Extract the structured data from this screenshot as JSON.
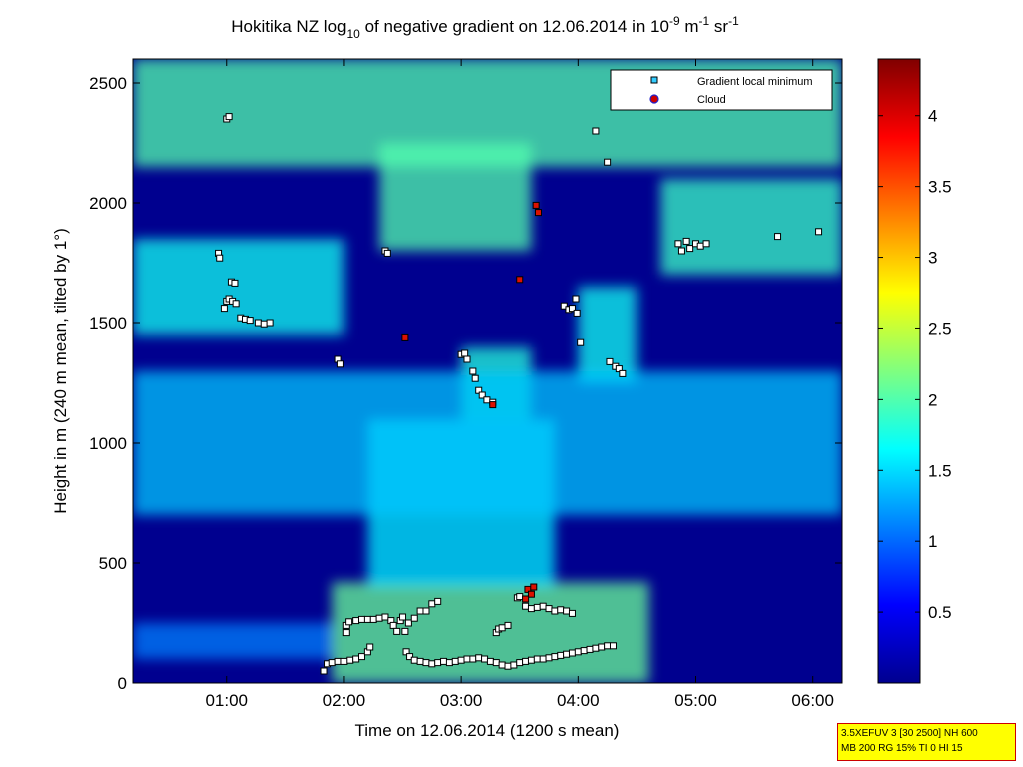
{
  "chart_data": {
    "type": "heatmap",
    "title": {
      "main": "Hokitika NZ log",
      "sub": "10",
      "mid": " of negative gradient on 12.06.2014 in 10",
      "sup1": "-9",
      "u1": " m",
      "sup2": "-1",
      "u2": " sr",
      "sup3": "-1"
    },
    "xlabel": "Time on 12.06.2014 (1200 s mean)",
    "ylabel": "Height in m (240 m mean, tilted by 1°)",
    "xlim": [
      0.2,
      6.25
    ],
    "ylim": [
      0,
      2600
    ],
    "x_ticks": [
      {
        "value": 1,
        "label": "01:00"
      },
      {
        "value": 2,
        "label": "02:00"
      },
      {
        "value": 3,
        "label": "03:00"
      },
      {
        "value": 4,
        "label": "04:00"
      },
      {
        "value": 5,
        "label": "05:00"
      },
      {
        "value": 6,
        "label": "06:00"
      }
    ],
    "y_ticks": [
      {
        "value": 0,
        "label": "0"
      },
      {
        "value": 500,
        "label": "500"
      },
      {
        "value": 1000,
        "label": "1000"
      },
      {
        "value": 1500,
        "label": "1500"
      },
      {
        "value": 2000,
        "label": "2000"
      },
      {
        "value": 2500,
        "label": "2500"
      }
    ],
    "colorbar": {
      "colormap": "jet",
      "range": [
        0,
        4.4
      ],
      "ticks": [
        {
          "value": 0.5,
          "label": "0.5"
        },
        {
          "value": 1,
          "label": "1"
        },
        {
          "value": 1.5,
          "label": "1.5"
        },
        {
          "value": 2,
          "label": "2"
        },
        {
          "value": 2.5,
          "label": "2.5"
        },
        {
          "value": 3,
          "label": "3"
        },
        {
          "value": 3.5,
          "label": "3.5"
        },
        {
          "value": 4,
          "label": "4"
        }
      ]
    },
    "legend": {
      "placement": "top-right",
      "entries": [
        {
          "label": "Gradient local minimum",
          "marker": "square",
          "color": "#33ccff"
        },
        {
          "label": "Cloud",
          "marker": "circle",
          "color": "#cc0000"
        }
      ]
    },
    "heat_features": [
      {
        "t0": 1.9,
        "t1": 4.6,
        "z0": 0,
        "z1": 420,
        "level": 2.1
      },
      {
        "t0": 2.2,
        "t1": 3.8,
        "z0": 400,
        "z1": 1100,
        "level": 1.6
      },
      {
        "t0": 0.2,
        "t1": 6.25,
        "z0": 2150,
        "z1": 2600,
        "level": 2.0
      },
      {
        "t0": 0.2,
        "t1": 2.0,
        "z0": 1450,
        "z1": 1850,
        "level": 1.7
      },
      {
        "t0": 2.3,
        "t1": 3.6,
        "z0": 1800,
        "z1": 2250,
        "level": 2.0
      },
      {
        "t0": 3.0,
        "t1": 3.6,
        "z0": 1100,
        "z1": 1400,
        "level": 1.8
      },
      {
        "t0": 4.7,
        "t1": 6.25,
        "z0": 1700,
        "z1": 2100,
        "level": 1.9
      },
      {
        "t0": 4.0,
        "t1": 4.5,
        "z0": 1250,
        "z1": 1650,
        "level": 1.7
      },
      {
        "t0": 0.2,
        "t1": 6.25,
        "z0": 700,
        "z1": 1300,
        "level": 1.4
      },
      {
        "t0": 0.2,
        "t1": 1.9,
        "z0": 100,
        "z1": 250,
        "level": 1.1
      }
    ],
    "gradient_minima": [
      [
        0.93,
        1790
      ],
      [
        0.94,
        1770
      ],
      [
        0.98,
        1560
      ],
      [
        1.0,
        1590
      ],
      [
        1.02,
        1600
      ],
      [
        1.05,
        1590
      ],
      [
        1.08,
        1580
      ],
      [
        1.0,
        2350
      ],
      [
        1.02,
        2360
      ],
      [
        1.12,
        1520
      ],
      [
        1.16,
        1515
      ],
      [
        1.2,
        1510
      ],
      [
        1.27,
        1500
      ],
      [
        1.32,
        1495
      ],
      [
        1.37,
        1500
      ],
      [
        1.95,
        1350
      ],
      [
        1.97,
        1330
      ],
      [
        2.35,
        1800
      ],
      [
        2.37,
        1790
      ],
      [
        1.04,
        1670
      ],
      [
        1.07,
        1665
      ],
      [
        3.0,
        1370
      ],
      [
        3.03,
        1375
      ],
      [
        3.05,
        1350
      ],
      [
        3.1,
        1300
      ],
      [
        3.12,
        1270
      ],
      [
        3.15,
        1220
      ],
      [
        3.18,
        1200
      ],
      [
        3.22,
        1180
      ],
      [
        3.27,
        1170
      ],
      [
        3.88,
        1570
      ],
      [
        3.92,
        1555
      ],
      [
        3.95,
        1560
      ],
      [
        3.98,
        1600
      ],
      [
        3.99,
        1540
      ],
      [
        4.02,
        1420
      ],
      [
        4.25,
        2170
      ],
      [
        4.15,
        2300
      ],
      [
        4.27,
        1340
      ],
      [
        4.32,
        1320
      ],
      [
        4.35,
        1310
      ],
      [
        4.38,
        1290
      ],
      [
        4.85,
        1830
      ],
      [
        4.88,
        1800
      ],
      [
        4.92,
        1840
      ],
      [
        4.95,
        1810
      ],
      [
        5.0,
        1830
      ],
      [
        5.04,
        1820
      ],
      [
        5.09,
        1830
      ],
      [
        5.7,
        1860
      ],
      [
        6.05,
        1880
      ],
      [
        1.83,
        50
      ],
      [
        1.86,
        80
      ],
      [
        1.9,
        85
      ],
      [
        1.95,
        90
      ],
      [
        2.0,
        90
      ],
      [
        2.05,
        95
      ],
      [
        2.1,
        100
      ],
      [
        2.15,
        110
      ],
      [
        2.2,
        130
      ],
      [
        2.22,
        150
      ],
      [
        2.53,
        130
      ],
      [
        2.56,
        110
      ],
      [
        2.6,
        95
      ],
      [
        2.65,
        90
      ],
      [
        2.7,
        85
      ],
      [
        2.75,
        80
      ],
      [
        2.8,
        85
      ],
      [
        2.85,
        90
      ],
      [
        2.9,
        85
      ],
      [
        2.95,
        90
      ],
      [
        3.0,
        95
      ],
      [
        3.05,
        100
      ],
      [
        3.1,
        100
      ],
      [
        3.15,
        105
      ],
      [
        3.2,
        100
      ],
      [
        3.25,
        90
      ],
      [
        3.3,
        85
      ],
      [
        3.35,
        75
      ],
      [
        3.4,
        70
      ],
      [
        3.45,
        75
      ],
      [
        3.5,
        85
      ],
      [
        3.55,
        90
      ],
      [
        3.6,
        95
      ],
      [
        3.65,
        100
      ],
      [
        3.7,
        100
      ],
      [
        3.75,
        105
      ],
      [
        3.8,
        110
      ],
      [
        3.85,
        115
      ],
      [
        3.9,
        120
      ],
      [
        3.95,
        125
      ],
      [
        4.0,
        130
      ],
      [
        4.05,
        135
      ],
      [
        4.1,
        140
      ],
      [
        4.15,
        145
      ],
      [
        4.2,
        150
      ],
      [
        4.25,
        155
      ],
      [
        4.3,
        155
      ],
      [
        2.02,
        210
      ],
      [
        2.02,
        240
      ],
      [
        2.04,
        255
      ],
      [
        2.1,
        260
      ],
      [
        2.15,
        265
      ],
      [
        2.2,
        265
      ],
      [
        2.25,
        265
      ],
      [
        2.3,
        270
      ],
      [
        2.35,
        275
      ],
      [
        2.4,
        260
      ],
      [
        2.42,
        240
      ],
      [
        2.45,
        215
      ],
      [
        2.48,
        260
      ],
      [
        2.5,
        275
      ],
      [
        2.52,
        215
      ],
      [
        2.55,
        250
      ],
      [
        2.6,
        270
      ],
      [
        2.65,
        300
      ],
      [
        2.7,
        300
      ],
      [
        2.75,
        330
      ],
      [
        2.8,
        340
      ],
      [
        3.3,
        210
      ],
      [
        3.32,
        225
      ],
      [
        3.35,
        230
      ],
      [
        3.4,
        240
      ],
      [
        3.48,
        355
      ],
      [
        3.5,
        360
      ],
      [
        3.55,
        320
      ],
      [
        3.6,
        310
      ],
      [
        3.65,
        315
      ],
      [
        3.7,
        320
      ],
      [
        3.75,
        310
      ],
      [
        3.8,
        300
      ],
      [
        3.85,
        305
      ],
      [
        3.9,
        300
      ],
      [
        3.95,
        290
      ]
    ],
    "cloud_points": [
      [
        3.64,
        1990
      ],
      [
        3.66,
        1960
      ],
      [
        3.5,
        1680
      ],
      [
        2.52,
        1440
      ],
      [
        3.27,
        1160
      ],
      [
        3.57,
        390
      ],
      [
        3.62,
        400
      ],
      [
        3.6,
        370
      ],
      [
        3.55,
        350
      ]
    ]
  },
  "infobox": {
    "line1": "3.5XEFUV 3 [30 2500] NH 600",
    "line2": "MB 200 RG 15% TI 0 HI 15"
  }
}
